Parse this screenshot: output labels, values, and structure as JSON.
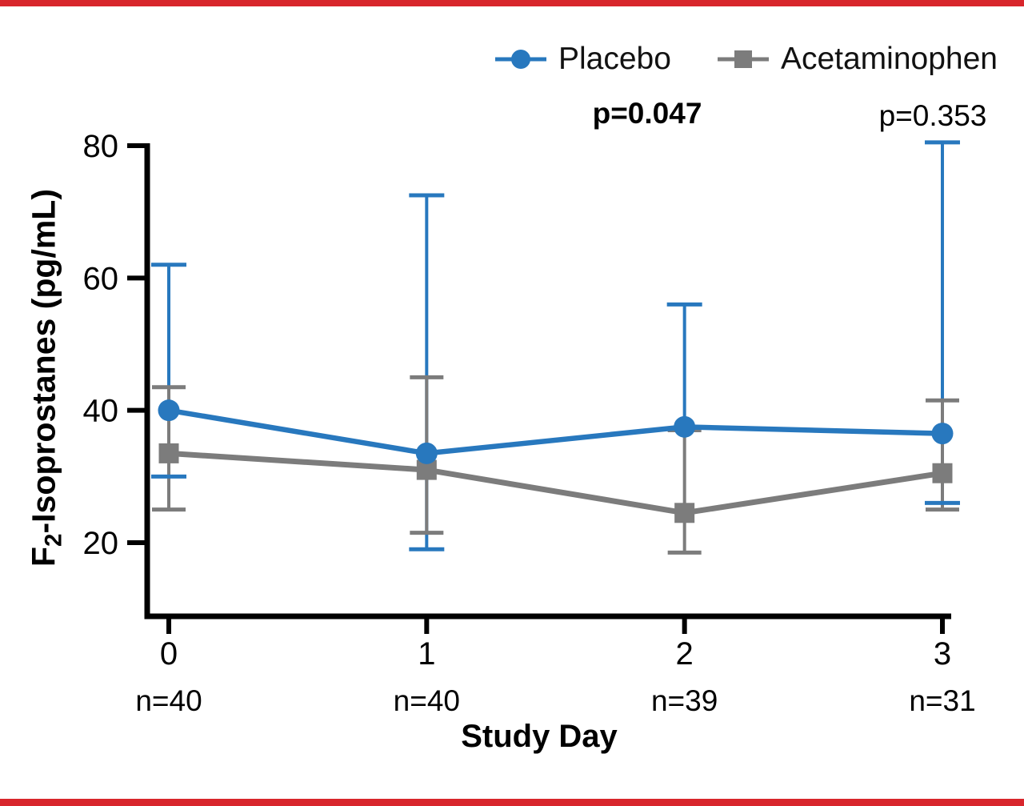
{
  "styles": {
    "rule_red": "#D8262C",
    "placebo_blue": "#2878BE",
    "acetaminophen_gray": "#7C7C7C",
    "axis_black": "#000000"
  },
  "legend": {
    "items": [
      {
        "label": "Placebo",
        "marker": "circle"
      },
      {
        "label": "Acetaminophen",
        "marker": "square"
      }
    ]
  },
  "axis_titles": {
    "ylabel_prefix": "F",
    "ylabel_sub": "2",
    "ylabel_rest": "-Isoprostanes (pg/mL)",
    "xlabel": "Study Day"
  },
  "chart_data": {
    "type": "line",
    "title": "",
    "xlabel": "Study Day",
    "ylabel": "F2-Isoprostanes (pg/mL)",
    "x": [
      0,
      1,
      2,
      3
    ],
    "x_tick_labels": [
      "0",
      "1",
      "2",
      "3"
    ],
    "n_labels": [
      "n=40",
      "n=40",
      "n=39",
      "n=31"
    ],
    "y_ticks": [
      20,
      40,
      60,
      80
    ],
    "ylim": [
      9,
      81
    ],
    "grid": false,
    "legend_position": "top-right",
    "series": [
      {
        "name": "Placebo",
        "marker": "circle",
        "color": "#2878BE",
        "values": [
          40,
          33.5,
          37.5,
          36.5
        ],
        "err_low": [
          30,
          19,
          null,
          26
        ],
        "err_high": [
          62,
          72.5,
          56,
          80.5
        ]
      },
      {
        "name": "Acetaminophen",
        "marker": "square",
        "color": "#7C7C7C",
        "values": [
          33.5,
          31,
          24.5,
          30.5
        ],
        "err_low": [
          25,
          21.5,
          18.5,
          25
        ],
        "err_high": [
          43.5,
          45,
          37,
          41.5
        ]
      }
    ],
    "annotations": [
      {
        "text": "p=0.047",
        "bold": true,
        "day": 2
      },
      {
        "text": "p=0.353",
        "bold": false,
        "day": 3
      }
    ]
  }
}
